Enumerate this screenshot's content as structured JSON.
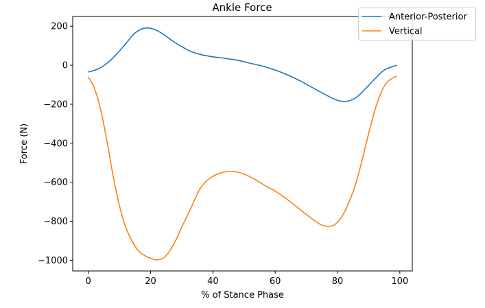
{
  "chart_data": {
    "type": "line",
    "title": "Ankle Force",
    "xlabel": "% of Stance Phase",
    "ylabel": "Force (N)",
    "xlim": [
      -5,
      104
    ],
    "ylim": [
      -1055,
      250
    ],
    "xticks": [
      0,
      20,
      40,
      60,
      80,
      100
    ],
    "xtick_labels": [
      "0",
      "20",
      "40",
      "60",
      "80",
      "100"
    ],
    "yticks": [
      200,
      0,
      -200,
      -400,
      -600,
      -800,
      -1000
    ],
    "ytick_labels": [
      "200",
      "0",
      "−200",
      "−400",
      "−600",
      "−800",
      "−1000"
    ],
    "grid": false,
    "legend_position": "upper-right (outside plot)",
    "series": [
      {
        "name": "Anterior-Posterior",
        "color": "#1f77b4",
        "x": [
          0,
          3,
          6,
          9,
          12,
          15,
          18,
          21,
          24,
          27,
          30,
          33,
          36,
          40,
          44,
          48,
          52,
          56,
          60,
          64,
          68,
          72,
          76,
          80,
          83,
          86,
          89,
          92,
          95,
          99
        ],
        "y": [
          -35,
          -20,
          10,
          55,
          110,
          165,
          190,
          185,
          160,
          125,
          95,
          70,
          55,
          43,
          35,
          25,
          10,
          -5,
          -25,
          -50,
          -80,
          -115,
          -150,
          -180,
          -185,
          -165,
          -120,
          -70,
          -25,
          0
        ]
      },
      {
        "name": "Vertical",
        "color": "#ff7f0e",
        "x": [
          0,
          2,
          4,
          6,
          8,
          10,
          12,
          14,
          16,
          18,
          20,
          22,
          24,
          26,
          28,
          30,
          33,
          36,
          39,
          42,
          45,
          48,
          51,
          54,
          57,
          60,
          64,
          68,
          72,
          75,
          78,
          80,
          82,
          84,
          86,
          88,
          90,
          92,
          94,
          96,
          99
        ],
        "y": [
          -60,
          -120,
          -230,
          -390,
          -570,
          -720,
          -830,
          -900,
          -950,
          -975,
          -990,
          -998,
          -990,
          -955,
          -900,
          -830,
          -730,
          -630,
          -580,
          -555,
          -545,
          -548,
          -565,
          -590,
          -620,
          -645,
          -690,
          -740,
          -790,
          -820,
          -825,
          -805,
          -760,
          -690,
          -600,
          -480,
          -350,
          -230,
          -140,
          -85,
          -55
        ]
      }
    ]
  }
}
